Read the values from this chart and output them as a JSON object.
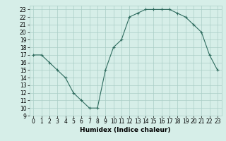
{
  "x": [
    0,
    1,
    2,
    3,
    4,
    5,
    6,
    7,
    8,
    9,
    10,
    11,
    12,
    13,
    14,
    15,
    16,
    17,
    18,
    19,
    20,
    21,
    22,
    23
  ],
  "y": [
    17,
    17,
    16,
    15,
    14,
    12,
    11,
    10,
    10,
    15,
    18,
    19,
    22,
    22.5,
    23,
    23,
    23,
    23,
    22.5,
    22,
    21,
    20,
    17,
    15
  ],
  "line_color": "#2e6b5e",
  "marker": "+",
  "bg_color": "#d6eee8",
  "grid_color": "#aacec6",
  "xlabel": "Humidex (Indice chaleur)",
  "xlim": [
    -0.5,
    23.5
  ],
  "ylim": [
    9,
    23.5
  ],
  "yticks": [
    9,
    10,
    11,
    12,
    13,
    14,
    15,
    16,
    17,
    18,
    19,
    20,
    21,
    22,
    23
  ],
  "xticks": [
    0,
    1,
    2,
    3,
    4,
    5,
    6,
    7,
    8,
    9,
    10,
    11,
    12,
    13,
    14,
    15,
    16,
    17,
    18,
    19,
    20,
    21,
    22,
    23
  ],
  "label_fontsize": 6.5,
  "tick_fontsize": 5.5
}
